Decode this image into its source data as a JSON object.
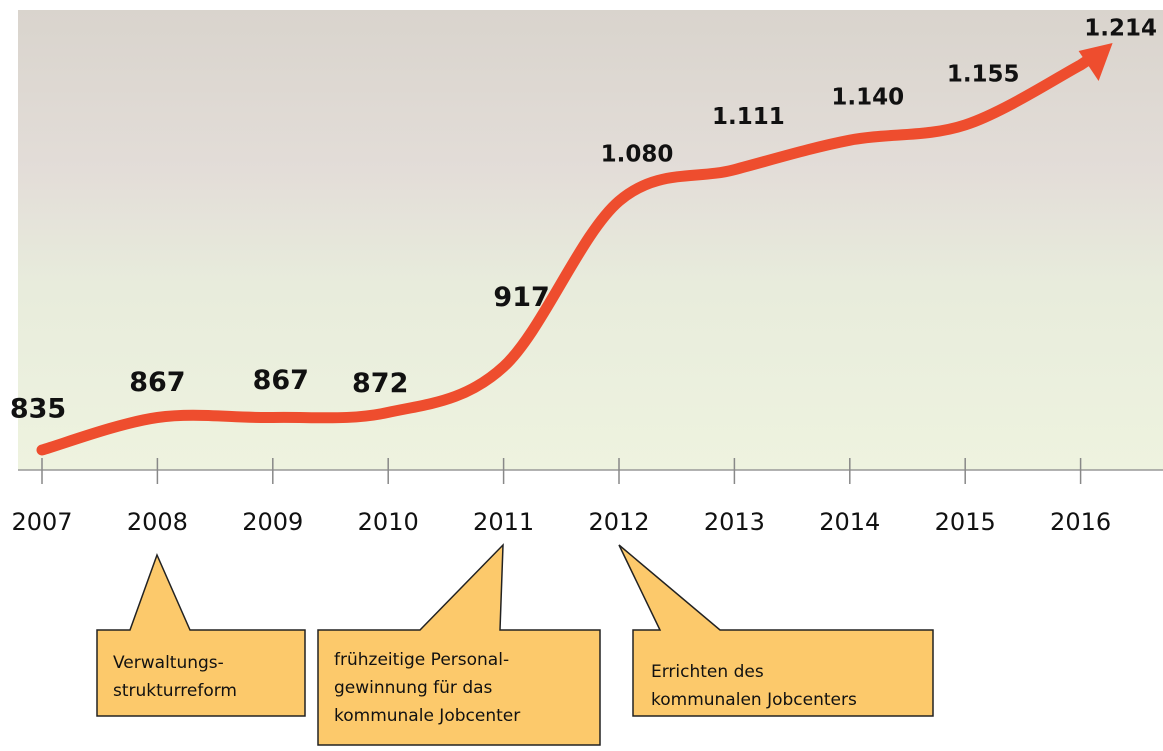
{
  "chart_data": {
    "type": "line",
    "categories": [
      "2007",
      "2008",
      "2009",
      "2010",
      "2011",
      "2012",
      "2013",
      "2014",
      "2015",
      "2016"
    ],
    "values": [
      835,
      867,
      867,
      872,
      917,
      1080,
      1111,
      1140,
      1155,
      1214
    ],
    "value_labels": [
      "835",
      "867",
      "867",
      "872",
      "917",
      "1.080",
      "1.111",
      "1.140",
      "1.155",
      "1.214"
    ],
    "color": "#ee4d2e",
    "annotations": [
      {
        "lines": [
          "Verwaltungs-",
          "strukturreform"
        ]
      },
      {
        "lines": [
          "frühzeitige Personal-",
          "gewinnung für das",
          "kommunale Jobcenter"
        ]
      },
      {
        "lines": [
          "Errichten des",
          "kommunalen Jobcenters"
        ]
      }
    ]
  }
}
